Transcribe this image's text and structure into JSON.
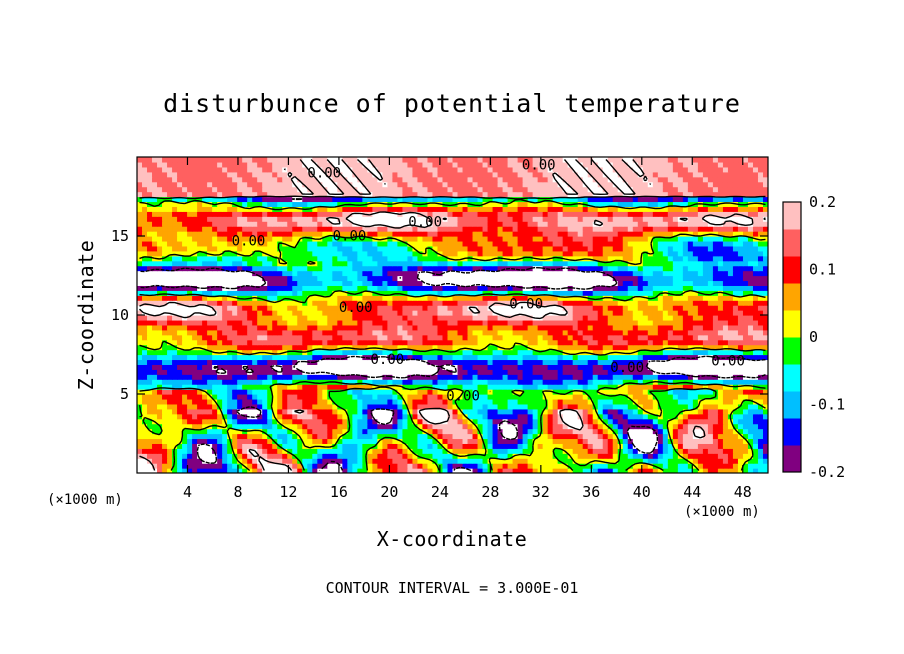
{
  "chart_data": {
    "type": "heatmap",
    "title": "disturbunce of potential temperature",
    "xlabel": "X-coordinate",
    "ylabel": "Z-coordinate",
    "x_unit_left": "(×1000 m)",
    "x_unit_right": "(×1000 m)",
    "xlim": [
      0,
      50
    ],
    "ylim": [
      0,
      20
    ],
    "x_ticks": [
      "4",
      "8",
      "12",
      "16",
      "20",
      "24",
      "28",
      "32",
      "36",
      "40",
      "44",
      "48"
    ],
    "y_ticks": [
      "5",
      "10",
      "15"
    ],
    "colorbar": {
      "range": [
        -0.2,
        0.2
      ],
      "ticks": [
        "0.2",
        "0.1",
        "0",
        "-0.1",
        "-0.2"
      ],
      "colors": [
        "#800080",
        "#0000ff",
        "#00bfff",
        "#00ffff",
        "#00ff00",
        "#ffff00",
        "#ffa500",
        "#ff0000",
        "#ff6060",
        "#ffc0c0"
      ]
    },
    "contour_labels": [
      "0.00",
      "0.00",
      "0.00",
      "0.00",
      "0.00",
      "0.00",
      "0.00",
      "0.00",
      "0.00",
      "0.00",
      "0.00"
    ],
    "note": "CONTOUR INTERVAL = 3.000E-01"
  }
}
